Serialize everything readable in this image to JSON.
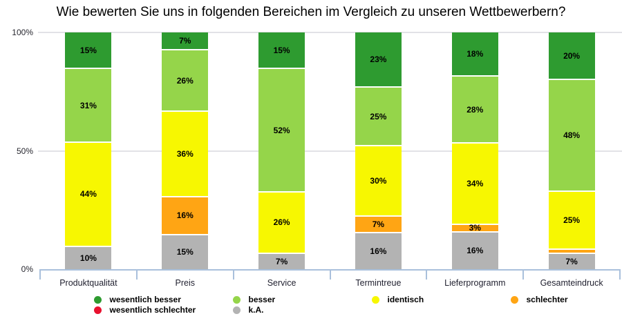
{
  "title": "Wie bewerten Sie uns in folgenden Bereichen im Vergleich zu unseren Wettbewerbern?",
  "y_axis": {
    "ticks": [
      {
        "label": "100%",
        "value": 100
      },
      {
        "label": "50%",
        "value": 50
      },
      {
        "label": "0%",
        "value": 0
      }
    ]
  },
  "chart_data": {
    "type": "bar",
    "subtype": "stacked-100-percent",
    "title": "Wie bewerten Sie uns in folgenden Bereichen im Vergleich zu unseren Wettbewerbern?",
    "categories": [
      "Produktqualität",
      "Preis",
      "Service",
      "Termintreue",
      "Lieferprogramm",
      "Gesamteindruck"
    ],
    "series": [
      {
        "name": "wesentlich besser",
        "color": "#2e9b30",
        "values": [
          15,
          7,
          15,
          23,
          18,
          20
        ],
        "labels": [
          "15%",
          "7%",
          "15%",
          "23%",
          "18%",
          "20%"
        ]
      },
      {
        "name": "besser",
        "color": "#95d54a",
        "values": [
          31,
          26,
          52,
          25,
          28,
          48
        ],
        "labels": [
          "31%",
          "26%",
          "52%",
          "25%",
          "28%",
          "48%"
        ]
      },
      {
        "name": "identisch",
        "color": "#f7f701",
        "values": [
          44,
          36,
          26,
          30,
          34,
          25
        ],
        "labels": [
          "44%",
          "36%",
          "26%",
          "30%",
          "34%",
          "25%"
        ]
      },
      {
        "name": "schlechter",
        "color": "#ffa514",
        "values": [
          0,
          16,
          0,
          7,
          3,
          2
        ],
        "labels": [
          "",
          "16%",
          "",
          "7%",
          "3%",
          ""
        ]
      },
      {
        "name": "wesentlich schlechter",
        "color": "#e8112f",
        "values": [
          0,
          0,
          0,
          0,
          0,
          0
        ],
        "labels": [
          "",
          "",
          "",
          "",
          "",
          ""
        ]
      },
      {
        "name": "k.A.",
        "color": "#b3b3b3",
        "values": [
          10,
          15,
          7,
          16,
          16,
          7
        ],
        "labels": [
          "10%",
          "15%",
          "7%",
          "16%",
          "16%",
          "7%"
        ]
      }
    ],
    "ylim": [
      0,
      100
    ],
    "grid_values": [
      50,
      100
    ],
    "legend_position": "bottom"
  },
  "legend": {
    "rows": [
      [
        {
          "label": "wesentlich besser",
          "color": "#2e9b30",
          "icon": "circle-swatch"
        },
        {
          "label": "besser",
          "color": "#95d54a",
          "icon": "circle-swatch"
        },
        {
          "label": "identisch",
          "color": "#f7f701",
          "icon": "circle-swatch"
        },
        {
          "label": "schlechter",
          "color": "#ffa514",
          "icon": "circle-swatch"
        }
      ],
      [
        {
          "label": "wesentlich schlechter",
          "color": "#e8112f",
          "icon": "circle-swatch"
        },
        {
          "label": "k.A.",
          "color": "#b3b3b3",
          "icon": "circle-swatch"
        }
      ]
    ]
  },
  "colors": {
    "background": "#ffffff",
    "gridline": "#e2e2e6",
    "axis_line": "#a9c0dc",
    "axis_text": "#26262e",
    "title_text": "#000000"
  }
}
